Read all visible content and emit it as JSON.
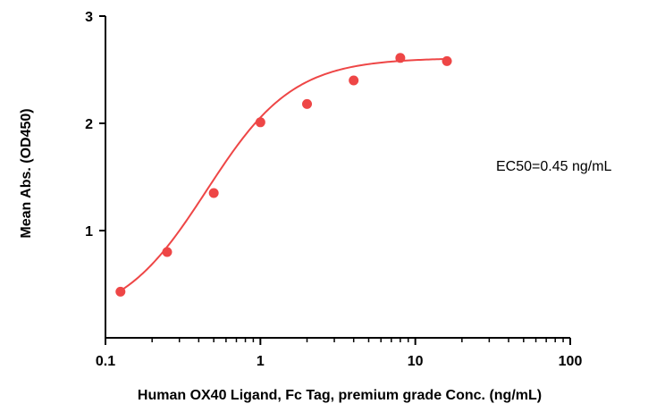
{
  "chart_data": {
    "type": "scatter",
    "xlabel": "Human OX40 Ligand, Fc Tag, premium grade Conc. (ng/mL)",
    "ylabel": "Mean Abs. (OD450)",
    "x_scale": "log",
    "xlim": [
      0.1,
      100
    ],
    "ylim": [
      0,
      3
    ],
    "x_ticks": [
      0.1,
      1,
      10,
      100
    ],
    "x_tick_labels": [
      "0.1",
      "1",
      "10",
      "100"
    ],
    "y_ticks": [
      1,
      2,
      3
    ],
    "y_tick_labels": [
      "1",
      "2",
      "3"
    ],
    "grid": false,
    "series": [
      {
        "x": [
          0.125,
          0.25,
          0.5,
          1,
          2,
          4,
          8,
          16
        ],
        "y": [
          0.43,
          0.8,
          1.35,
          2.01,
          2.18,
          2.4,
          2.61,
          2.58
        ]
      }
    ],
    "fit_curve": {
      "model": "4PL",
      "bottom": 0.14,
      "top": 2.61,
      "ec50": 0.45,
      "hill": 1.55,
      "x_range": [
        0.125,
        16
      ]
    },
    "annotation": "EC50=0.45 ng/mL",
    "colors": {
      "points": "#ee4646",
      "curve": "#ee4646",
      "axes": "#000000"
    }
  }
}
